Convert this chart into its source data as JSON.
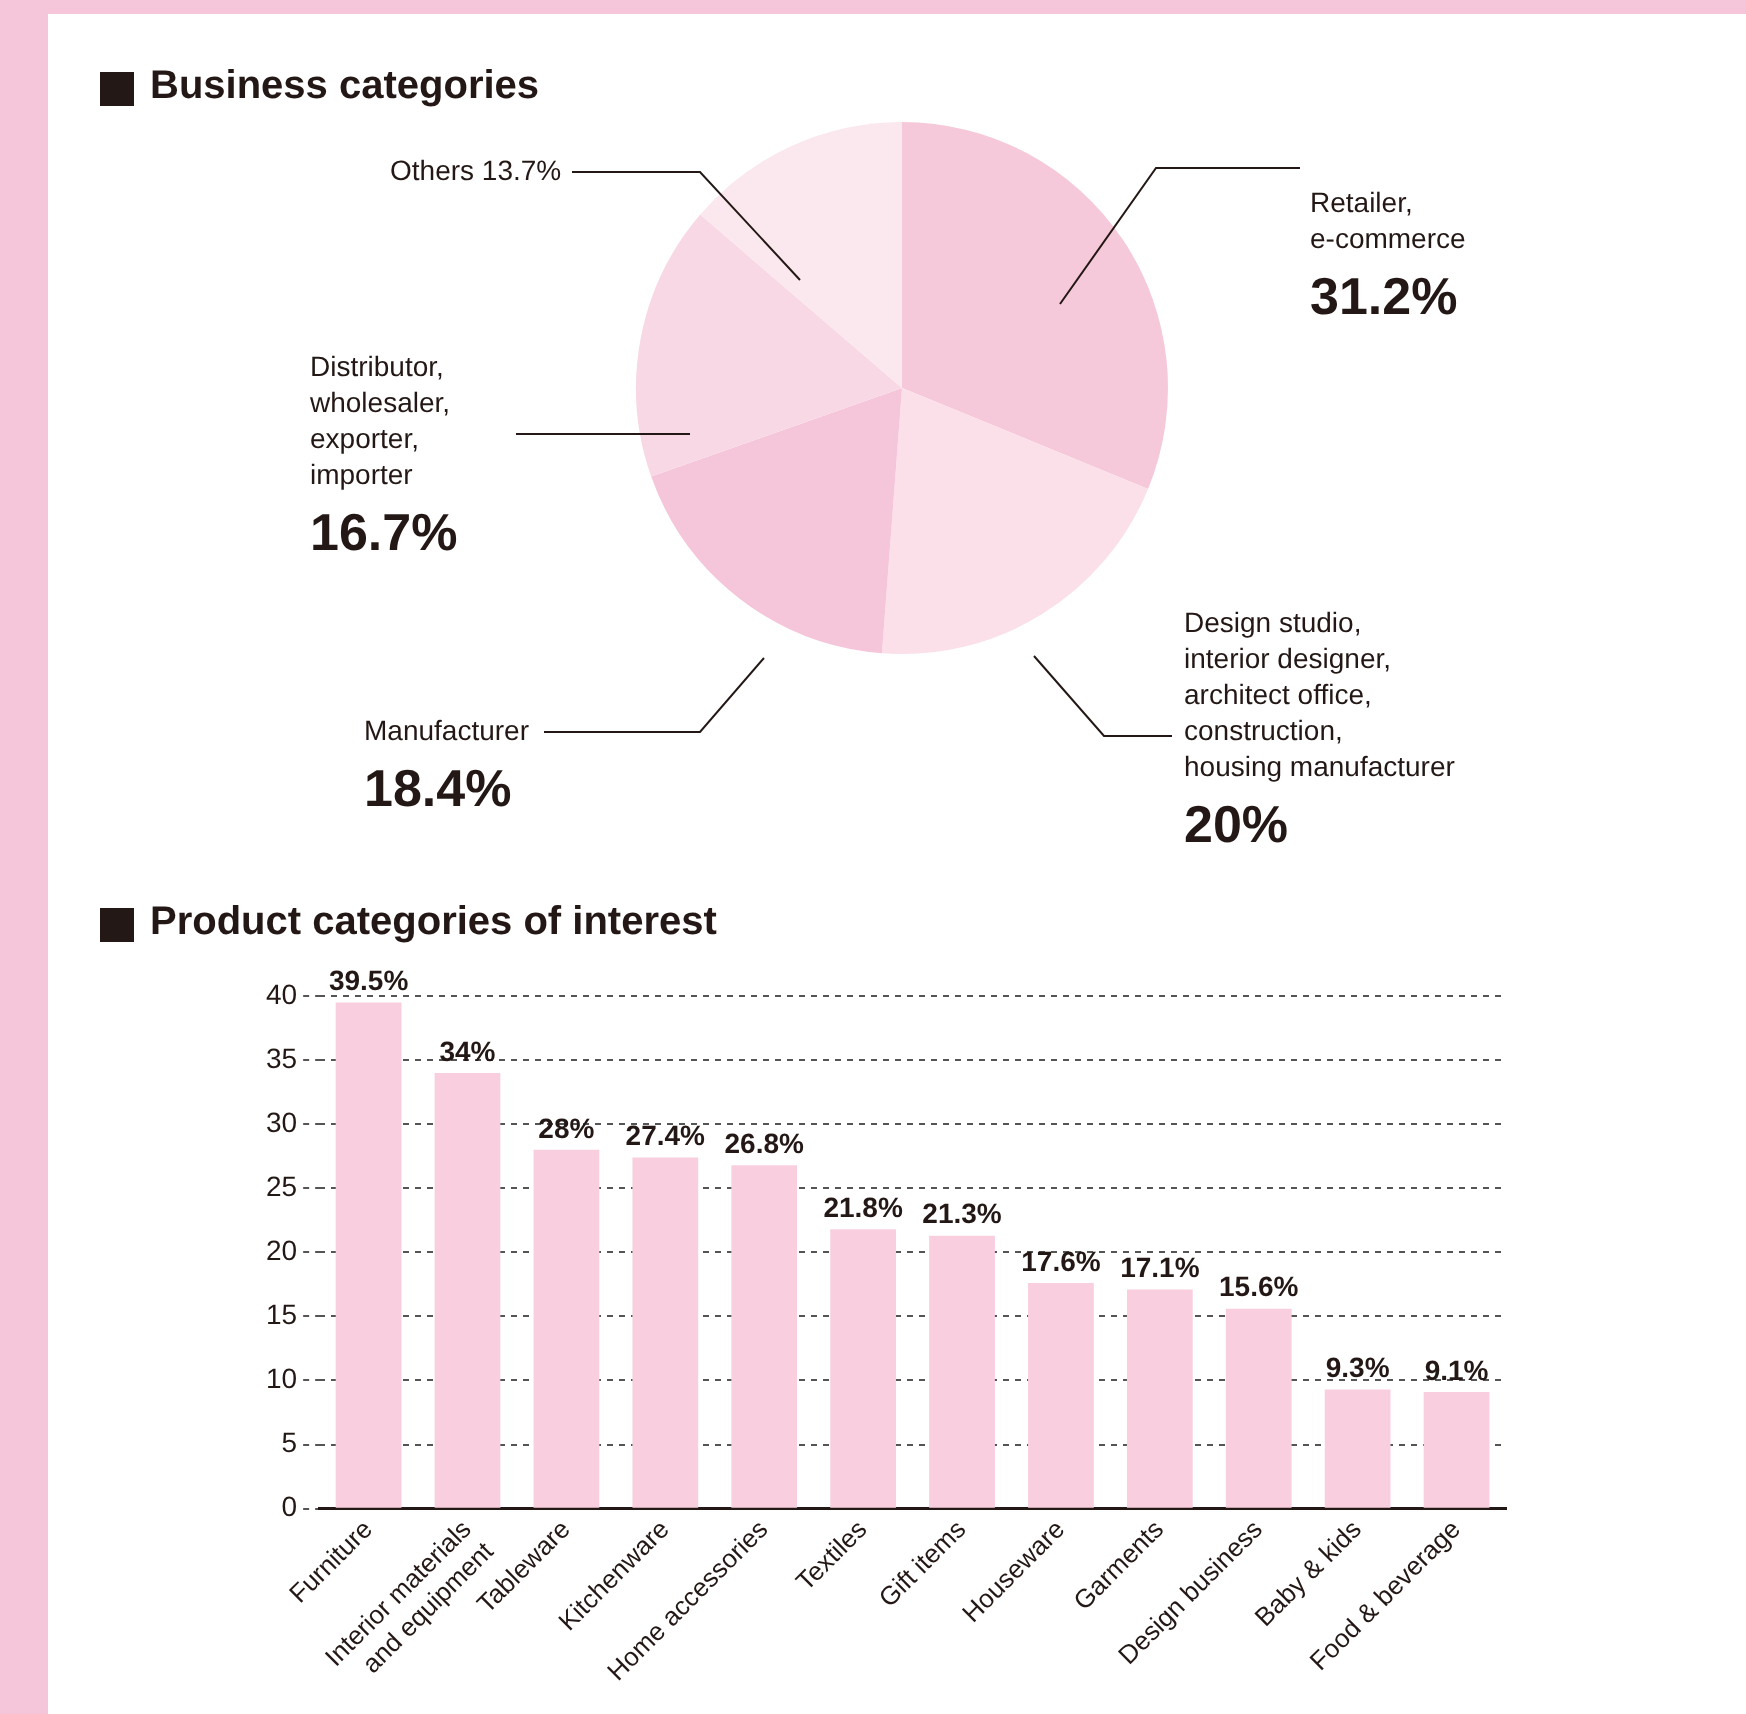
{
  "chart_data": [
    {
      "type": "pie",
      "title": "Business categories",
      "categories": [
        "Retailer,\ne-commerce",
        "Design studio,\ninterior designer,\narchitect office,\nconstruction,\nhousing manufacturer",
        "Manufacturer",
        "Distributor,\nwholesaler,\nexporter,\nimporter",
        "Others"
      ],
      "values": [
        31.2,
        20,
        18.4,
        16.7,
        13.7
      ],
      "value_labels": [
        "31.2%",
        "20%",
        "18.4%",
        "16.7%",
        "13.7%"
      ],
      "colors": [
        "#f6c9da",
        "#fbdfe9",
        "#f5c6da",
        "#f8d8e4",
        "#fbe8ef"
      ],
      "legend": false
    },
    {
      "type": "bar",
      "title": "Product categories of interest",
      "categories": [
        "Furniture",
        "Interior materials\nand equipment",
        "Tableware",
        "Kitchenware",
        "Home accessories",
        "Textiles",
        "Gift items",
        "Houseware",
        "Garments",
        "Design business",
        "Baby & kids",
        "Food & beverage"
      ],
      "values": [
        39.5,
        34,
        28,
        27.4,
        26.8,
        21.8,
        21.3,
        17.6,
        17.1,
        15.6,
        9.3,
        9.1
      ],
      "value_labels": [
        "39.5%",
        "34%",
        "28%",
        "27.4%",
        "26.8%",
        "21.8%",
        "21.3%",
        "17.6%",
        "17.1%",
        "15.6%",
        "9.3%",
        "9.1%"
      ],
      "color": "#f9cfe0",
      "ylim": [
        0,
        40
      ],
      "yticks": [
        0,
        5,
        10,
        15,
        20,
        25,
        30,
        35,
        40
      ],
      "grid": "y",
      "legend": false
    }
  ]
}
